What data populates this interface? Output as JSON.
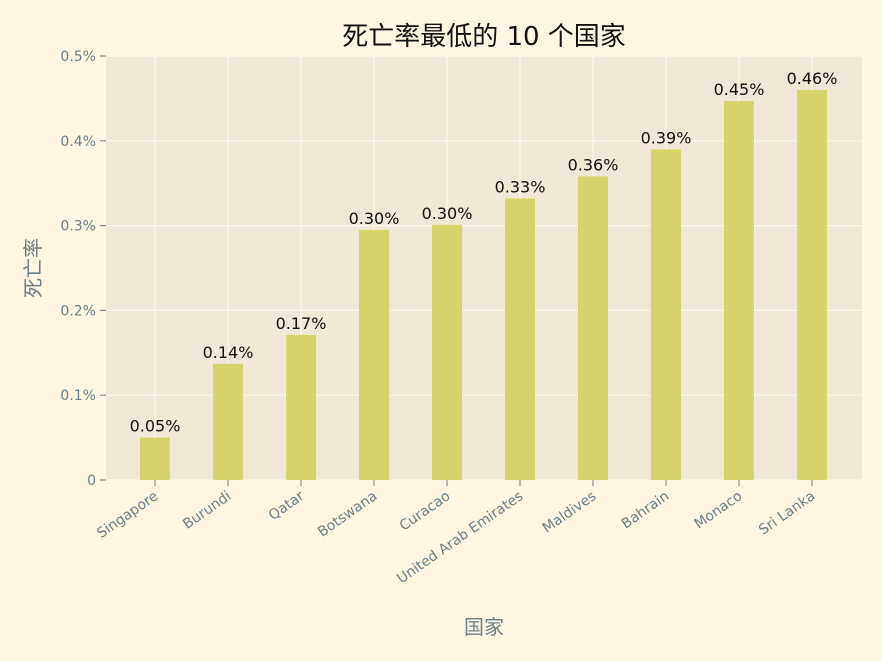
{
  "chart_data": {
    "type": "bar",
    "title": "死亡率最低的 10 个国家",
    "xlabel": "国家",
    "ylabel": "死亡率",
    "categories": [
      "Singapore",
      "Burundi",
      "Qatar",
      "Botswana",
      "Curacao",
      "United Arab Emirates",
      "Maldives",
      "Bahrain",
      "Monaco",
      "Sri Lanka"
    ],
    "values": [
      0.05,
      0.137,
      0.171,
      0.295,
      0.301,
      0.332,
      0.358,
      0.39,
      0.447,
      0.46
    ],
    "data_labels": [
      "0.05%",
      "0.14%",
      "0.17%",
      "0.30%",
      "0.30%",
      "0.33%",
      "0.36%",
      "0.39%",
      "0.45%",
      "0.46%"
    ],
    "yticks": [
      0,
      0.1,
      0.2,
      0.3,
      0.4,
      0.5
    ],
    "ytick_labels": [
      "0",
      "0.1%",
      "0.2%",
      "0.3%",
      "0.4%",
      "0.5%"
    ],
    "ylim": [
      0,
      0.5
    ],
    "grid": true,
    "colors": {
      "page_background": "#fdf6e3",
      "plot_background": "#efe8d6",
      "bar": "#d5d46a",
      "grid": "#fbf7ec",
      "axis_text": "#6b7f8a",
      "title_text": "#111111"
    }
  }
}
